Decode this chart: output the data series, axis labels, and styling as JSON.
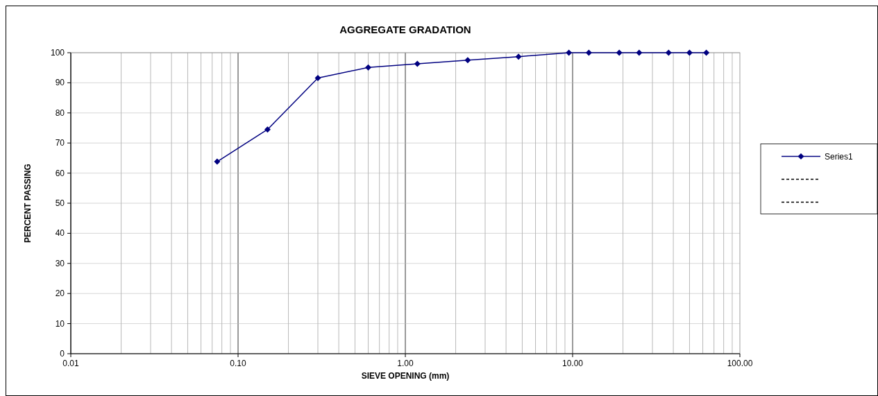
{
  "chart_data": {
    "type": "line",
    "title": "AGGREGATE GRADATION",
    "xlabel": "SIEVE OPENING (mm)",
    "ylabel": "PERCENT PASSING",
    "log": "x",
    "grid": true,
    "legend": "right",
    "marker": "diamond",
    "xlim": [
      0.01,
      100
    ],
    "xticks": [
      {
        "value": 0.01,
        "label": "0.01"
      },
      {
        "value": 0.1,
        "label": "0.10"
      },
      {
        "value": 1,
        "label": "1.00"
      },
      {
        "value": 10,
        "label": "10.00"
      },
      {
        "value": 100,
        "label": "100.00"
      }
    ],
    "ylim": [
      0,
      100
    ],
    "yticks": [
      0,
      10,
      20,
      30,
      40,
      50,
      60,
      70,
      80,
      90,
      100
    ],
    "x": [
      0.075,
      0.15,
      0.3,
      0.6,
      1.18,
      2.36,
      4.75,
      9.5,
      12.5,
      19,
      25,
      37.5,
      50,
      63
    ],
    "series": [
      {
        "name": "Series1",
        "color": "#000080",
        "line_style": "solid",
        "values": [
          63.8,
          74.5,
          91.6,
          95.1,
          96.3,
          97.5,
          98.7,
          100,
          100,
          100,
          100,
          100,
          100,
          100
        ]
      },
      {
        "color": "#000000",
        "line_style": "dashed",
        "marker": "none",
        "values": [
          null,
          null,
          null,
          null,
          null,
          null,
          null,
          null,
          null,
          null,
          null,
          null,
          null,
          null
        ]
      },
      {
        "color": "#000000",
        "line_style": "dashed",
        "marker": "none",
        "values": [
          null,
          null,
          null,
          null,
          null,
          null,
          null,
          null,
          null,
          null,
          null,
          null,
          null,
          null
        ]
      }
    ]
  }
}
